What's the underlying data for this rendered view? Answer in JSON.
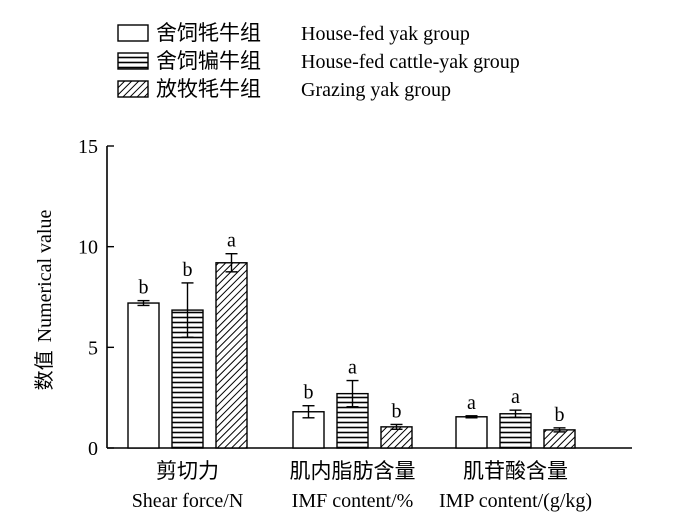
{
  "chart_data": {
    "type": "bar",
    "title": "",
    "ylabel_cn": "数值",
    "ylabel_en": "Numerical value",
    "xlabel": "",
    "ylim": [
      0,
      15
    ],
    "yticks": [
      0,
      5,
      10,
      15
    ],
    "grid": false,
    "legend_position": "top-left",
    "categories": [
      {
        "cn": "剪切力",
        "en": "Shear force/N"
      },
      {
        "cn": "肌内脂肪含量",
        "en": "IMF content/%"
      },
      {
        "cn": "肌苷酸含量",
        "en": "IMP content/(g/kg)"
      }
    ],
    "series": [
      {
        "name_cn": "舍饲牦牛组",
        "name_en": "House-fed yak group",
        "pattern": "blank",
        "values": [
          7.2,
          1.8,
          1.55
        ],
        "errors": [
          0.12,
          0.3,
          0.05
        ],
        "labels": [
          "b",
          "b",
          "a"
        ]
      },
      {
        "name_cn": "舍饲犏牛组",
        "name_en": "House-fed cattle-yak group",
        "pattern": "horizontal",
        "values": [
          6.85,
          2.7,
          1.7
        ],
        "errors": [
          1.35,
          0.65,
          0.18
        ],
        "labels": [
          "b",
          "a",
          "a"
        ]
      },
      {
        "name_cn": "放牧牦牛组",
        "name_en": "Grazing yak group",
        "pattern": "diagonal",
        "values": [
          9.2,
          1.05,
          0.9
        ],
        "errors": [
          0.45,
          0.12,
          0.1
        ],
        "labels": [
          "a",
          "b",
          "b"
        ]
      }
    ]
  }
}
